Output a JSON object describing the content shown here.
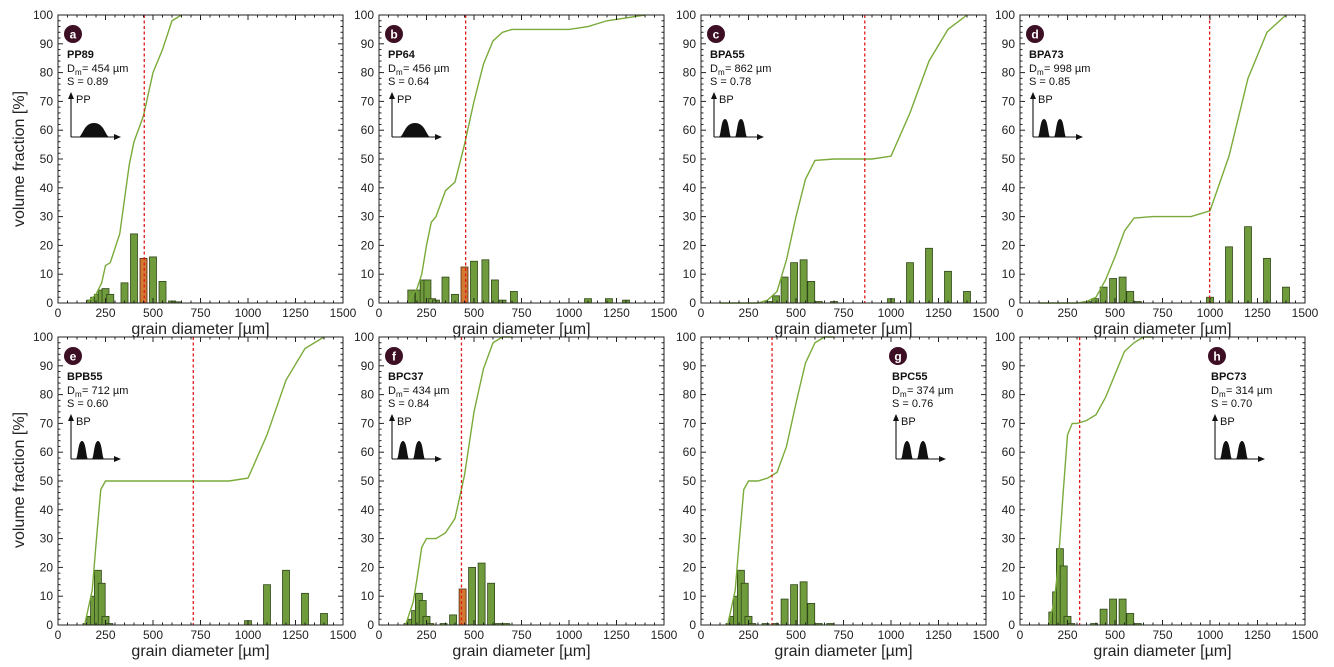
{
  "figure": {
    "ylabel": "volume fraction [%]",
    "xlabel": "grain diameter [µm]"
  },
  "chart_data": [
    {
      "type": "bar",
      "panel": "a",
      "sample": "PP89",
      "dm_label": "D",
      "dm_sub": "m",
      "dm_value": " = 454 µm",
      "s_label": "S = 0.89",
      "icon_label": "PP",
      "icon_kind": "unimodal",
      "xlim": [
        0,
        1500
      ],
      "ylim": [
        0,
        100
      ],
      "xticks": [
        0,
        250,
        500,
        750,
        1000,
        1250,
        1500
      ],
      "yticks": [
        0,
        10,
        20,
        30,
        40,
        50,
        60,
        70,
        80,
        90,
        100
      ],
      "dm_line": 454,
      "bars": {
        "x": [
          170,
          190,
          210,
          230,
          250,
          275,
          350,
          400,
          450,
          500,
          550,
          600,
          630
        ],
        "y": [
          1,
          2,
          3,
          4.5,
          5,
          3,
          7,
          24,
          15.5,
          16,
          7.5,
          0.7,
          0.4
        ],
        "highlight": [
          false,
          false,
          false,
          false,
          false,
          false,
          false,
          false,
          true,
          false,
          false,
          false,
          false
        ]
      },
      "cumulative": {
        "x": [
          150,
          200,
          230,
          250,
          275,
          325,
          375,
          400,
          450,
          500,
          550,
          600,
          650
        ],
        "y": [
          0,
          3,
          7,
          13,
          14,
          24,
          48,
          56,
          65,
          80,
          88,
          98,
          100
        ]
      }
    },
    {
      "type": "bar",
      "panel": "b",
      "sample": "PP64",
      "dm_label": "D",
      "dm_sub": "m",
      "dm_value": " = 456 µm",
      "s_label": "S = 0.64",
      "icon_label": "PP",
      "icon_kind": "unimodal",
      "xlim": [
        0,
        1500
      ],
      "ylim": [
        0,
        100
      ],
      "xticks": [
        0,
        250,
        500,
        750,
        1000,
        1250,
        1500
      ],
      "yticks": [
        0,
        10,
        20,
        30,
        40,
        50,
        60,
        70,
        80,
        90,
        100
      ],
      "dm_line": 456,
      "bars": {
        "x": [
          170,
          210,
          235,
          255,
          280,
          300,
          350,
          400,
          450,
          500,
          560,
          610,
          650,
          710,
          1100,
          1210,
          1300
        ],
        "y": [
          4.5,
          4.5,
          8,
          8,
          1.5,
          1,
          9,
          3,
          12.5,
          14.5,
          15,
          8,
          1,
          4,
          1.5,
          1.5,
          1
        ],
        "highlight": [
          false,
          false,
          false,
          false,
          false,
          false,
          false,
          false,
          true,
          false,
          false,
          false,
          false,
          false,
          false,
          false,
          false
        ]
      },
      "cumulative": {
        "x": [
          150,
          200,
          225,
          250,
          275,
          300,
          350,
          400,
          450,
          500,
          550,
          600,
          650,
          700,
          1000,
          1100,
          1200,
          1300,
          1400
        ],
        "y": [
          0,
          5,
          10,
          20,
          28,
          30,
          39,
          42,
          55,
          70,
          83,
          91,
          94,
          95,
          95,
          96,
          98,
          99,
          100
        ]
      }
    },
    {
      "type": "bar",
      "panel": "c",
      "sample": "BPA55",
      "dm_label": "D",
      "dm_sub": "m",
      "dm_value": " = 862 µm",
      "s_label": "S = 0.78",
      "icon_label": "BP",
      "icon_kind": "bimodal",
      "xlim": [
        0,
        1500
      ],
      "ylim": [
        0,
        100
      ],
      "xticks": [
        0,
        250,
        500,
        750,
        1000,
        1250,
        1500
      ],
      "yticks": [
        0,
        10,
        20,
        30,
        40,
        50,
        60,
        70,
        80,
        90,
        100
      ],
      "dm_line": 862,
      "bars": {
        "x": [
          355,
          395,
          440,
          490,
          540,
          580,
          620,
          700,
          1000,
          1100,
          1200,
          1300,
          1400
        ],
        "y": [
          0.5,
          2.5,
          9,
          14,
          15,
          7.5,
          0.5,
          0.5,
          1.5,
          14,
          19,
          11,
          4
        ],
        "highlight": [
          false,
          false,
          false,
          false,
          false,
          false,
          false,
          false,
          false,
          false,
          false,
          false,
          false
        ]
      },
      "cumulative": {
        "x": [
          100,
          300,
          350,
          400,
          450,
          500,
          550,
          600,
          700,
          800,
          900,
          1000,
          1100,
          1200,
          1300,
          1400
        ],
        "y": [
          0,
          0,
          1,
          4,
          15,
          30,
          43,
          49.5,
          50,
          50,
          50,
          51,
          66,
          84,
          95,
          100
        ]
      }
    },
    {
      "type": "bar",
      "panel": "d",
      "sample": "BPA73",
      "dm_label": "D",
      "dm_sub": "m",
      "dm_value": " = 998 µm",
      "s_label": "S = 0.85",
      "icon_label": "BP",
      "icon_kind": "bimodal",
      "xlim": [
        0,
        1500
      ],
      "ylim": [
        0,
        100
      ],
      "xticks": [
        0,
        250,
        500,
        750,
        1000,
        1250,
        1500
      ],
      "yticks": [
        0,
        10,
        20,
        30,
        40,
        50,
        60,
        70,
        80,
        90,
        100
      ],
      "dm_line": 998,
      "bars": {
        "x": [
          355,
          395,
          440,
          490,
          540,
          580,
          620,
          1000,
          1100,
          1200,
          1300,
          1400
        ],
        "y": [
          0.5,
          1.5,
          5.5,
          8.5,
          9,
          4,
          0.5,
          2,
          19.5,
          26.5,
          15.5,
          5.5
        ],
        "highlight": [
          false,
          false,
          false,
          false,
          false,
          false,
          false,
          false,
          false,
          false,
          false,
          false
        ]
      },
      "cumulative": {
        "x": [
          100,
          300,
          350,
          400,
          450,
          500,
          550,
          600,
          700,
          900,
          1000,
          1100,
          1200,
          1300,
          1400
        ],
        "y": [
          0,
          0,
          0.5,
          2,
          8,
          16,
          25,
          29.5,
          30,
          30,
          32,
          51,
          78,
          94,
          100
        ]
      }
    },
    {
      "type": "bar",
      "panel": "e",
      "sample": "BPB55",
      "dm_label": "D",
      "dm_sub": "m",
      "dm_value": " = 712 µm",
      "s_label": "S = 0.60",
      "icon_label": "BP",
      "icon_kind": "bimodal",
      "xlim": [
        0,
        1500
      ],
      "ylim": [
        0,
        100
      ],
      "xticks": [
        0,
        250,
        500,
        750,
        1000,
        1250,
        1500
      ],
      "yticks": [
        0,
        10,
        20,
        30,
        40,
        50,
        60,
        70,
        80,
        90,
        100
      ],
      "dm_line": 712,
      "bars": {
        "x": [
          150,
          170,
          190,
          210,
          230,
          250,
          270,
          1000,
          1100,
          1200,
          1300,
          1400
        ],
        "y": [
          0.5,
          3,
          10,
          19,
          14.5,
          3,
          0.5,
          1.5,
          14,
          19,
          11,
          4
        ],
        "highlight": [
          false,
          false,
          false,
          false,
          false,
          false,
          false,
          false,
          false,
          false,
          false,
          false
        ]
      },
      "cumulative": {
        "x": [
          140,
          180,
          200,
          225,
          250,
          275,
          400,
          600,
          800,
          900,
          1000,
          1100,
          1200,
          1300,
          1400
        ],
        "y": [
          0,
          12,
          28,
          47,
          50,
          50,
          50,
          50,
          50,
          50,
          51,
          66,
          85,
          96,
          100
        ]
      }
    },
    {
      "type": "bar",
      "panel": "f",
      "sample": "BPC37",
      "dm_label": "D",
      "dm_sub": "m",
      "dm_value": " = 434 µm",
      "s_label": "S = 0.84",
      "icon_label": "BP",
      "icon_kind": "bimodal",
      "xlim": [
        0,
        1500
      ],
      "ylim": [
        0,
        100
      ],
      "xticks": [
        0,
        250,
        500,
        750,
        1000,
        1250,
        1500
      ],
      "yticks": [
        0,
        10,
        20,
        30,
        40,
        50,
        60,
        70,
        80,
        90,
        100
      ],
      "dm_line": 434,
      "bars": {
        "x": [
          150,
          170,
          190,
          210,
          230,
          250,
          270,
          340,
          390,
          440,
          490,
          540,
          590,
          630,
          670
        ],
        "y": [
          0.5,
          2,
          5,
          11,
          8.5,
          3,
          0.5,
          0.5,
          3.5,
          12.5,
          20,
          21.5,
          14.5,
          0.5,
          0.5
        ],
        "highlight": [
          false,
          false,
          false,
          false,
          false,
          false,
          false,
          false,
          false,
          true,
          false,
          false,
          false,
          false,
          false
        ]
      },
      "cumulative": {
        "x": [
          140,
          180,
          200,
          225,
          250,
          300,
          350,
          400,
          450,
          500,
          550,
          600,
          650,
          700
        ],
        "y": [
          0,
          8,
          16,
          27,
          30,
          30,
          32,
          37,
          52,
          74,
          89,
          98,
          100,
          100
        ]
      }
    },
    {
      "type": "bar",
      "panel": "g",
      "sample": "BPC55",
      "dm_label": "D",
      "dm_sub": "m",
      "dm_value": " = 374 µm",
      "s_label": "S = 0.76",
      "icon_label": "BP",
      "icon_kind": "bimodal",
      "xlim": [
        0,
        1500
      ],
      "ylim": [
        0,
        100
      ],
      "xticks": [
        0,
        250,
        500,
        750,
        1000,
        1250,
        1500
      ],
      "yticks": [
        0,
        10,
        20,
        30,
        40,
        50,
        60,
        70,
        80,
        90,
        100
      ],
      "dm_line": 374,
      "bars": {
        "x": [
          150,
          170,
          190,
          210,
          230,
          250,
          270,
          340,
          390,
          440,
          490,
          540,
          580,
          620,
          680
        ],
        "y": [
          0.5,
          3,
          10,
          19,
          14.5,
          3,
          0.5,
          0.5,
          0.5,
          9,
          14,
          15,
          7.5,
          0.5,
          0.5
        ],
        "highlight": [
          false,
          false,
          false,
          false,
          false,
          false,
          false,
          false,
          false,
          false,
          false,
          false,
          false,
          false,
          false
        ]
      },
      "cumulative": {
        "x": [
          140,
          180,
          200,
          225,
          250,
          300,
          350,
          400,
          450,
          500,
          550,
          600,
          650,
          700
        ],
        "y": [
          0,
          12,
          28,
          47,
          50,
          50,
          51,
          53,
          62,
          77,
          91,
          98,
          100,
          100
        ]
      }
    },
    {
      "type": "bar",
      "panel": "h",
      "sample": "BPC73",
      "dm_label": "D",
      "dm_sub": "m",
      "dm_value": " = 314 µm",
      "s_label": "S = 0.70",
      "icon_label": "BP",
      "icon_kind": "bimodal",
      "xlim": [
        0,
        1500
      ],
      "ylim": [
        0,
        100
      ],
      "xticks": [
        0,
        250,
        500,
        750,
        1000,
        1250,
        1500
      ],
      "yticks": [
        0,
        10,
        20,
        30,
        40,
        50,
        60,
        70,
        80,
        90,
        100
      ],
      "dm_line": 314,
      "bars": {
        "x": [
          170,
          190,
          210,
          230,
          250,
          270,
          390,
          440,
          490,
          540,
          580,
          620
        ],
        "y": [
          4.5,
          11.5,
          26.5,
          20.5,
          3,
          0.5,
          0.5,
          5.5,
          9,
          9,
          4,
          0.5
        ],
        "highlight": [
          false,
          false,
          false,
          false,
          false,
          false,
          false,
          false,
          false,
          false,
          false,
          false
        ]
      },
      "cumulative": {
        "x": [
          150,
          180,
          200,
          225,
          250,
          275,
          300,
          350,
          400,
          450,
          500,
          550,
          600,
          650,
          700
        ],
        "y": [
          0,
          8,
          20,
          44,
          66,
          70,
          70,
          71,
          73,
          79,
          87,
          95,
          98,
          100,
          100
        ]
      }
    }
  ]
}
